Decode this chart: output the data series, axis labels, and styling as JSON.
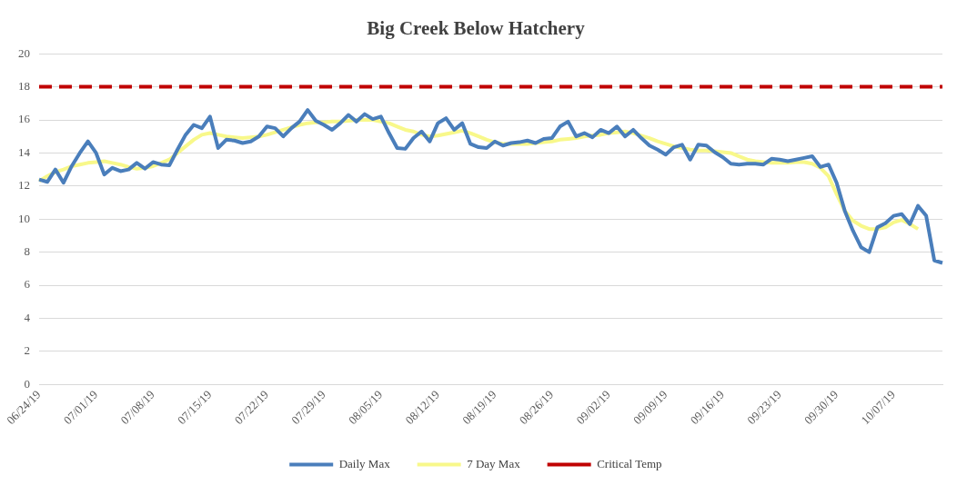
{
  "chart_data": {
    "type": "line",
    "title": "Big Creek Below Hatchery",
    "categories": [
      "06/24/19",
      null,
      null,
      null,
      null,
      null,
      null,
      "07/01/19",
      null,
      null,
      null,
      null,
      null,
      null,
      "07/08/19",
      null,
      null,
      null,
      null,
      null,
      null,
      "07/15/19",
      null,
      null,
      null,
      null,
      null,
      null,
      "07/22/19",
      null,
      null,
      null,
      null,
      null,
      null,
      "07/29/19",
      null,
      null,
      null,
      null,
      null,
      null,
      "08/05/19",
      null,
      null,
      null,
      null,
      null,
      null,
      "08/12/19",
      null,
      null,
      null,
      null,
      null,
      null,
      "08/19/19",
      null,
      null,
      null,
      null,
      null,
      null,
      "08/26/19",
      null,
      null,
      null,
      null,
      null,
      null,
      "09/02/19",
      null,
      null,
      null,
      null,
      null,
      null,
      "09/09/19",
      null,
      null,
      null,
      null,
      null,
      null,
      "09/16/19",
      null,
      null,
      null,
      null,
      null,
      null,
      "09/23/19",
      null,
      null,
      null,
      null,
      null,
      null,
      "09/30/19",
      null,
      null,
      null,
      null,
      null,
      null,
      "10/07/19",
      null,
      null,
      null,
      null,
      null,
      null
    ],
    "series": [
      {
        "name": "Daily Max",
        "color": "#4a7ebb",
        "line_style": "solid",
        "values": [
          12.4,
          12.25,
          13.0,
          12.2,
          13.2,
          14.0,
          14.7,
          14.0,
          12.7,
          13.1,
          12.9,
          13.0,
          13.4,
          13.05,
          13.45,
          13.3,
          13.25,
          14.2,
          15.1,
          15.7,
          15.5,
          16.2,
          14.3,
          14.8,
          14.75,
          14.6,
          14.7,
          15.0,
          15.6,
          15.5,
          15.0,
          15.5,
          15.9,
          16.6,
          15.95,
          15.7,
          15.4,
          15.8,
          16.3,
          15.9,
          16.35,
          16.05,
          16.2,
          15.2,
          14.3,
          14.25,
          14.9,
          15.3,
          14.7,
          15.8,
          16.1,
          15.4,
          15.8,
          14.55,
          14.35,
          14.3,
          14.7,
          14.45,
          14.6,
          14.65,
          14.75,
          14.6,
          14.85,
          14.9,
          15.6,
          15.9,
          15.0,
          15.2,
          14.95,
          15.4,
          15.2,
          15.6,
          15.0,
          15.4,
          14.9,
          14.45,
          14.2,
          13.9,
          14.35,
          14.5,
          13.6,
          14.5,
          14.45,
          14.05,
          13.75,
          13.35,
          13.3,
          13.35,
          13.35,
          13.3,
          13.65,
          13.6,
          13.5,
          13.6,
          13.7,
          13.8,
          13.15,
          13.3,
          12.2,
          10.5,
          9.3,
          8.3,
          8.0,
          9.5,
          9.75,
          10.2,
          10.3,
          9.7,
          10.8,
          10.2,
          7.5,
          7.35
        ]
      },
      {
        "name": "7 Day Max",
        "color": "#f8f88a",
        "line_style": "solid",
        "values": [
          12.3,
          12.6,
          12.85,
          13.0,
          13.2,
          13.3,
          13.4,
          13.45,
          13.5,
          13.4,
          13.3,
          13.15,
          13.05,
          13.1,
          13.2,
          13.4,
          13.6,
          14.0,
          14.4,
          14.8,
          15.1,
          15.2,
          15.1,
          15.0,
          14.95,
          14.9,
          14.95,
          15.0,
          15.1,
          15.25,
          15.4,
          15.55,
          15.7,
          15.8,
          15.85,
          15.85,
          15.9,
          15.9,
          15.95,
          16.0,
          16.0,
          16.0,
          15.9,
          15.8,
          15.6,
          15.4,
          15.3,
          15.1,
          15.0,
          15.05,
          15.15,
          15.25,
          15.35,
          15.2,
          15.0,
          14.8,
          14.65,
          14.55,
          14.55,
          14.55,
          14.55,
          14.6,
          14.65,
          14.7,
          14.8,
          14.85,
          14.9,
          15.0,
          15.05,
          15.1,
          15.2,
          15.25,
          15.3,
          15.2,
          15.05,
          14.9,
          14.7,
          14.55,
          14.4,
          14.3,
          14.2,
          14.15,
          14.15,
          14.1,
          14.05,
          14.0,
          13.8,
          13.6,
          13.5,
          13.45,
          13.4,
          13.4,
          13.4,
          13.45,
          13.45,
          13.35,
          13.1,
          12.6,
          11.5,
          10.5,
          9.9,
          9.6,
          9.4,
          9.4,
          9.5,
          9.8,
          9.95,
          9.7,
          9.4,
          null,
          null,
          null
        ]
      },
      {
        "name": "Critical Temp",
        "color": "#c00000",
        "line_style": "dashed",
        "values": [
          18,
          18,
          18,
          18,
          18,
          18,
          18,
          18,
          18,
          18,
          18,
          18,
          18,
          18,
          18,
          18,
          18,
          18,
          18,
          18,
          18,
          18,
          18,
          18,
          18,
          18,
          18,
          18,
          18,
          18,
          18,
          18,
          18,
          18,
          18,
          18,
          18,
          18,
          18,
          18,
          18,
          18,
          18,
          18,
          18,
          18,
          18,
          18,
          18,
          18,
          18,
          18,
          18,
          18,
          18,
          18,
          18,
          18,
          18,
          18,
          18,
          18,
          18,
          18,
          18,
          18,
          18,
          18,
          18,
          18,
          18,
          18,
          18,
          18,
          18,
          18,
          18,
          18,
          18,
          18,
          18,
          18,
          18,
          18,
          18,
          18,
          18,
          18,
          18,
          18,
          18,
          18,
          18,
          18,
          18,
          18,
          18,
          18,
          18,
          18,
          18,
          18,
          18,
          18,
          18,
          18,
          18,
          18,
          18,
          18,
          18,
          18
        ]
      }
    ],
    "ylim": [
      0,
      20
    ],
    "yticks": [
      0,
      2,
      4,
      6,
      8,
      10,
      12,
      14,
      16,
      18,
      20
    ],
    "grid": "y",
    "legend": "bottom",
    "marker": "none"
  }
}
